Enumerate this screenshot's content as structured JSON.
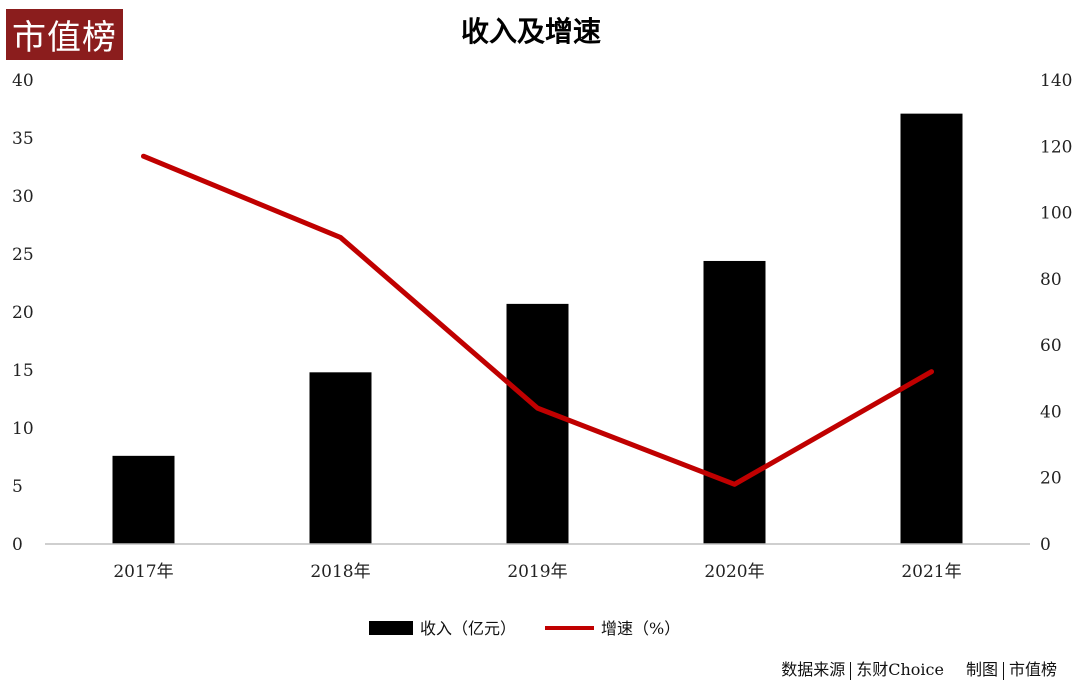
{
  "brand": {
    "logo_text": "市值榜"
  },
  "footer": {
    "source_label": "数据来源",
    "source_value": "东财Choice",
    "made_label": "制图",
    "made_value": "市值榜"
  },
  "colors": {
    "bar": "#000000",
    "line": "#c00000",
    "logo_bg": "#8b1d1d",
    "axis": "#bfbfbf"
  },
  "chart_data": {
    "type": "bar",
    "title": "收入及增速",
    "categories": [
      "2017年",
      "2018年",
      "2019年",
      "2020年",
      "2021年"
    ],
    "series": [
      {
        "name": "收入（亿元）",
        "type": "bar",
        "axis": "left",
        "values": [
          7.6,
          14.8,
          20.7,
          24.4,
          37.1
        ]
      },
      {
        "name": "增速（%）",
        "type": "line",
        "axis": "right",
        "values": [
          117,
          92.5,
          41,
          18,
          52
        ]
      }
    ],
    "y_left": {
      "min": 0,
      "max": 40,
      "ticks": [
        0,
        5,
        10,
        15,
        20,
        25,
        30,
        35,
        40
      ]
    },
    "y_right": {
      "min": 0,
      "max": 140,
      "ticks": [
        0,
        20,
        40,
        60,
        80,
        100,
        120,
        140
      ]
    },
    "grid": false,
    "legend_position": "bottom"
  }
}
